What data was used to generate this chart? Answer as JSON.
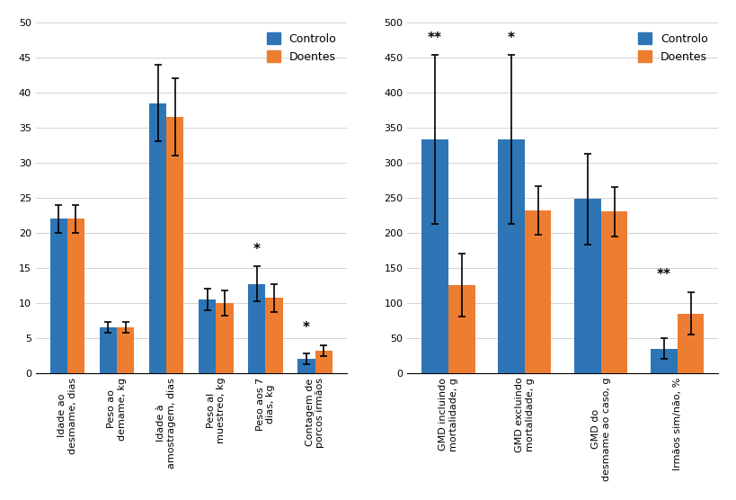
{
  "left": {
    "categories": [
      "Idade ao\ndesmame, dias",
      "Peso ao\ndemame, kg",
      "Idade à\namostragem, dias",
      "Peso al\nmuestreo, kg",
      "Peso aos 7\ndias, kg",
      "Contagem de\nporcos irmãos"
    ],
    "controlo_vals": [
      22,
      6.5,
      38.5,
      10.5,
      12.7,
      2.0
    ],
    "doentes_vals": [
      22,
      6.5,
      36.5,
      10.0,
      10.7,
      3.2
    ],
    "controlo_err": [
      2.0,
      0.8,
      5.5,
      1.5,
      2.5,
      0.8
    ],
    "doentes_err": [
      2.0,
      0.8,
      5.5,
      1.8,
      2.0,
      0.8
    ],
    "ylim": [
      0,
      50
    ],
    "yticks": [
      0,
      5,
      10,
      15,
      20,
      25,
      30,
      35,
      40,
      45,
      50
    ],
    "significance": [
      null,
      null,
      null,
      null,
      "*",
      "*"
    ]
  },
  "right": {
    "categories": [
      "GMD incluindo\nmortalidade, g",
      "GMD excluindo\nmortalidade, g",
      "GMD do\ndesmame ao caso, g",
      "Irmãos sim/não, %"
    ],
    "controlo_vals": [
      333,
      333,
      248,
      35
    ],
    "doentes_vals": [
      125,
      232,
      230,
      85
    ],
    "controlo_err": [
      120,
      120,
      65,
      15
    ],
    "doentes_err": [
      45,
      35,
      35,
      30
    ],
    "ylim": [
      0,
      500
    ],
    "yticks": [
      0,
      50,
      100,
      150,
      200,
      250,
      300,
      350,
      400,
      450,
      500
    ],
    "significance": [
      "**",
      "*",
      null,
      "**"
    ]
  },
  "bar_width": 0.35,
  "controlo_color": "#2E75B6",
  "doentes_color": "#ED7D31",
  "background_color": "#FFFFFF",
  "legend_labels": [
    "Controlo",
    "Doentes"
  ],
  "fontsize_tick": 8,
  "fontsize_legend": 9,
  "fontsize_sig": 11
}
